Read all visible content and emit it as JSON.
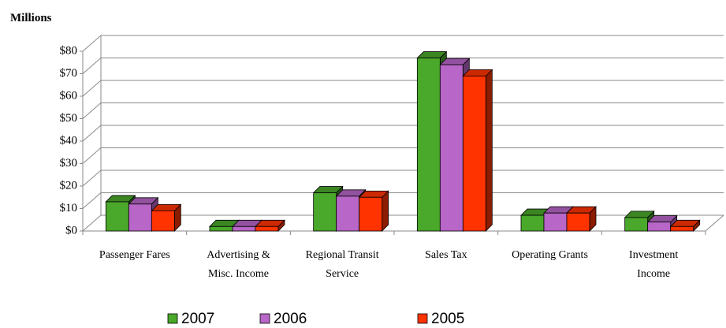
{
  "chart_data": {
    "type": "bar3d",
    "y_label": "Millions",
    "categories": [
      "Passenger Fares",
      "Advertising & Misc. Income",
      "Regional Transit Service",
      "Sales Tax",
      "Operating Grants",
      "Investment Income"
    ],
    "series": [
      {
        "name": "2007",
        "color": "#4aa82a",
        "values": [
          13,
          2,
          17,
          77,
          7,
          6
        ]
      },
      {
        "name": "2006",
        "color": "#b866c8",
        "values": [
          12,
          2,
          15.5,
          74,
          8,
          4
        ]
      },
      {
        "name": "2005",
        "color": "#ff3300",
        "values": [
          9,
          2,
          15,
          69,
          8,
          2
        ]
      }
    ],
    "ylim": [
      0,
      80
    ],
    "yticks": [
      {
        "value": 0,
        "label": "$0"
      },
      {
        "value": 10,
        "label": "$10"
      },
      {
        "value": 20,
        "label": "$20"
      },
      {
        "value": 30,
        "label": "$30"
      },
      {
        "value": 40,
        "label": "$40"
      },
      {
        "value": 50,
        "label": "$50"
      },
      {
        "value": 60,
        "label": "$60"
      },
      {
        "value": 70,
        "label": "$70"
      },
      {
        "value": 80,
        "label": "$80"
      }
    ],
    "grid": true
  }
}
